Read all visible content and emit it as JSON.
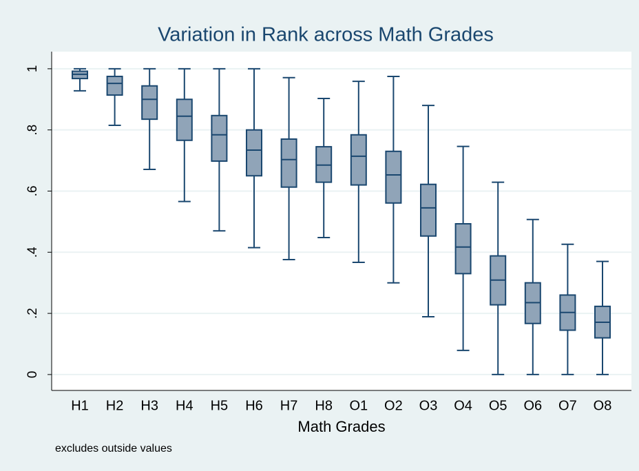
{
  "chart_data": {
    "type": "box",
    "title": "Variation in Rank across Math Grades",
    "x_label": "Math Grades",
    "note": "excludes outside values",
    "categories": [
      "H1",
      "H2",
      "H3",
      "H4",
      "H5",
      "H6",
      "H7",
      "H8",
      "O1",
      "O2",
      "O3",
      "O4",
      "O5",
      "O6",
      "O7",
      "O8"
    ],
    "min": [
      0.928,
      0.815,
      0.671,
      0.566,
      0.47,
      0.415,
      0.376,
      0.448,
      0.367,
      0.3,
      0.189,
      0.079,
      0,
      0,
      0,
      0
    ],
    "q1": [
      0.968,
      0.914,
      0.835,
      0.766,
      0.698,
      0.65,
      0.613,
      0.629,
      0.62,
      0.561,
      0.453,
      0.33,
      0.228,
      0.167,
      0.145,
      0.12
    ],
    "median": [
      0.982,
      0.952,
      0.9,
      0.845,
      0.784,
      0.734,
      0.703,
      0.685,
      0.714,
      0.653,
      0.545,
      0.417,
      0.309,
      0.235,
      0.203,
      0.171
    ],
    "q3": [
      0.992,
      0.975,
      0.944,
      0.9,
      0.847,
      0.8,
      0.77,
      0.745,
      0.784,
      0.73,
      0.622,
      0.493,
      0.388,
      0.3,
      0.26,
      0.223
    ],
    "max": [
      1,
      1,
      1,
      1,
      1,
      1,
      0.971,
      0.903,
      0.959,
      0.975,
      0.88,
      0.746,
      0.629,
      0.507,
      0.426,
      0.37
    ],
    "box_color": "#90a4b8",
    "line_color": "#1a476f",
    "ylim": [
      -0.052,
      1.056
    ],
    "yticks": [
      0,
      {
        "value": 0.2,
        "label": ".2"
      },
      {
        "value": 0.4,
        "label": ".4"
      },
      {
        "value": 0.6,
        "label": ".6"
      },
      {
        "value": 0.8,
        "label": ".8"
      },
      1
    ],
    "grid": true
  }
}
